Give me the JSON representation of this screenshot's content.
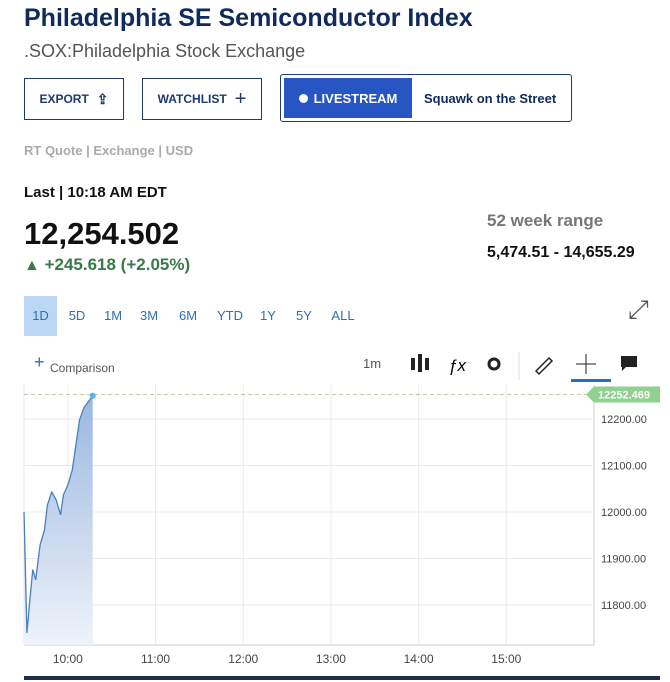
{
  "header": {
    "title": "Philadelphia SE Semiconductor Index",
    "subtitle": ".SOX:Philadelphia Stock Exchange"
  },
  "buttons": {
    "export": "EXPORT",
    "watchlist": "WATCHLIST",
    "livestream": "LIVESTREAM",
    "show": "Squawk on the Street"
  },
  "quote": {
    "meta": "RT Quote | Exchange | USD",
    "last": "Last | 10:18 AM EDT",
    "price": "12,254.502",
    "change": "+245.618 (+2.05%)",
    "range_label": "52 week range",
    "range": "5,474.51 - 14,655.29"
  },
  "tabs": [
    "1D",
    "5D",
    "1M",
    "3M",
    "6M",
    "YTD",
    "1Y",
    "5Y",
    "ALL"
  ],
  "toolbar": {
    "comparison": "Comparison",
    "interval": "1m"
  },
  "chart_data": {
    "type": "line",
    "color": "#4a7fc1",
    "x": [
      570,
      572,
      574,
      576,
      578,
      581,
      584,
      586,
      589,
      592,
      595,
      597,
      600,
      603,
      605,
      608,
      611,
      614,
      617
    ],
    "values": [
      12000,
      11740,
      11811,
      11876,
      11854,
      11929,
      11961,
      12015,
      12043,
      12026,
      11994,
      12037,
      12058,
      12090,
      12133,
      12198,
      12224,
      12237,
      12250
    ],
    "xlim": [
      570,
      960
    ],
    "xticks": [
      {
        "value": 600,
        "label": "10:00"
      },
      {
        "value": 660,
        "label": "11:00"
      },
      {
        "value": 720,
        "label": "12:00"
      },
      {
        "value": 780,
        "label": "13:00"
      },
      {
        "value": 840,
        "label": "14:00"
      },
      {
        "value": 900,
        "label": "15:00"
      }
    ],
    "ylim": [
      11714,
      12273
    ],
    "yticks": [
      {
        "value": 11800,
        "label": "11800.00"
      },
      {
        "value": 11900,
        "label": "11900.00"
      },
      {
        "value": 12000,
        "label": "12000.00"
      },
      {
        "value": 12100,
        "label": "12100.00"
      },
      {
        "value": 12200,
        "label": "12200.00"
      }
    ],
    "last_price": 12252.469,
    "grid": true
  }
}
